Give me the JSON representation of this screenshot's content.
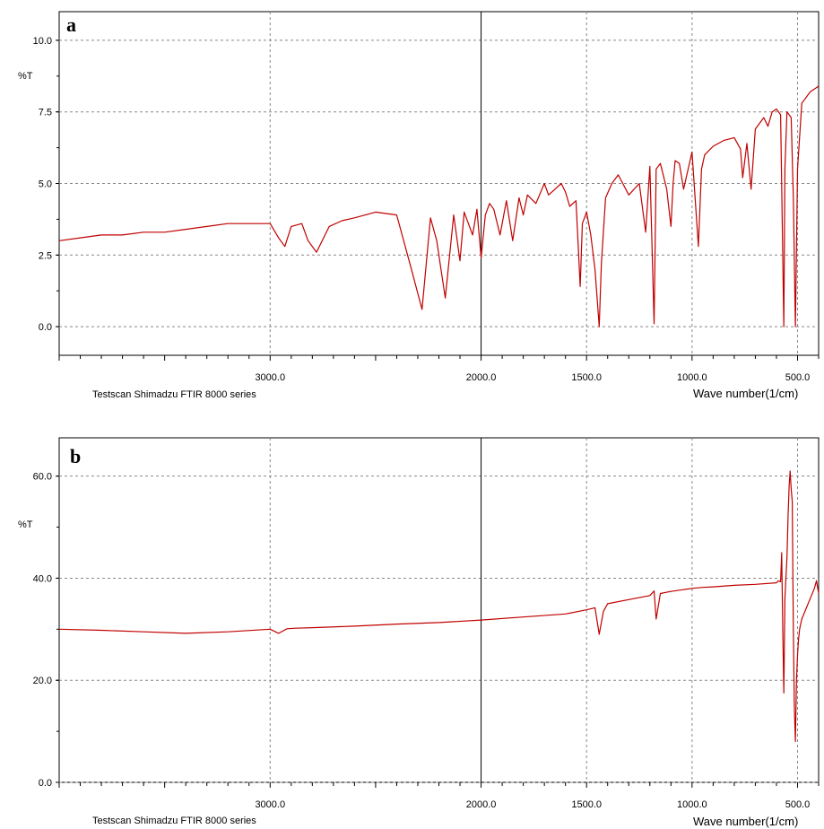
{
  "colors": {
    "trace": "#c00000",
    "frame": "#000000",
    "grid": "#888888"
  },
  "chart_data": [
    {
      "type": "line",
      "panel_label": "a",
      "ylabel": "%T",
      "xlabel": "Wave number(1/cm)",
      "footer": "Testscan Shimadzu FTIR 8000 series",
      "xlim": [
        4000,
        400
      ],
      "ylim": [
        -1,
        11
      ],
      "xticks": [
        3000.0,
        2000.0,
        1500.0,
        1000.0,
        500.0
      ],
      "xtick_labels": [
        "3000.0",
        "2000.0",
        "1500.0",
        "1000.0",
        "500.0"
      ],
      "yticks": [
        0.0,
        2.5,
        5.0,
        7.5,
        10.0
      ],
      "ytick_labels": [
        "0.0",
        "2.5",
        "5.0",
        "7.5",
        "10.0"
      ],
      "grid": true,
      "series": [
        {
          "x": [
            4000,
            3900,
            3800,
            3700,
            3600,
            3500,
            3400,
            3300,
            3200,
            3100,
            3000,
            2960,
            2930,
            2900,
            2850,
            2820,
            2780,
            2720,
            2660,
            2600,
            2500,
            2400,
            2330,
            2280,
            2240,
            2210,
            2170,
            2130,
            2100,
            2080,
            2040,
            2020,
            2000,
            1980,
            1960,
            1940,
            1910,
            1880,
            1850,
            1820,
            1800,
            1780,
            1740,
            1700,
            1680,
            1650,
            1620,
            1600,
            1580,
            1550,
            1530,
            1520,
            1500,
            1480,
            1460,
            1440,
            1430,
            1410,
            1380,
            1350,
            1300,
            1250,
            1220,
            1200,
            1180,
            1170,
            1150,
            1120,
            1100,
            1090,
            1080,
            1060,
            1040,
            1000,
            970,
            955,
            940,
            900,
            850,
            800,
            770,
            760,
            740,
            720,
            700,
            660,
            640,
            620,
            600,
            580,
            565,
            560,
            550,
            530,
            520,
            510,
            500,
            480,
            460,
            440,
            420,
            400
          ],
          "y": [
            3.0,
            3.1,
            3.2,
            3.2,
            3.3,
            3.3,
            3.4,
            3.5,
            3.6,
            3.6,
            3.6,
            3.1,
            2.8,
            3.5,
            3.6,
            3.0,
            2.6,
            3.5,
            3.7,
            3.8,
            4.0,
            3.9,
            2.0,
            0.6,
            3.8,
            3.0,
            1.0,
            3.9,
            2.3,
            4.0,
            3.2,
            4.1,
            2.4,
            3.9,
            4.3,
            4.1,
            3.2,
            4.4,
            3.0,
            4.5,
            3.9,
            4.6,
            4.3,
            5.0,
            4.6,
            4.8,
            5.0,
            4.7,
            4.2,
            4.4,
            1.4,
            3.6,
            4.0,
            3.2,
            2.0,
            0.0,
            2.2,
            4.5,
            5.0,
            5.3,
            4.6,
            5.0,
            3.3,
            5.6,
            0.1,
            5.5,
            5.7,
            4.8,
            3.5,
            5.0,
            5.8,
            5.7,
            4.8,
            6.1,
            2.8,
            5.5,
            6.0,
            6.3,
            6.5,
            6.6,
            6.2,
            5.2,
            6.4,
            4.8,
            6.9,
            7.3,
            7.0,
            7.5,
            7.6,
            7.4,
            0.0,
            5.5,
            7.5,
            7.3,
            4.5,
            0.0,
            5.5,
            7.8,
            8.0,
            8.2,
            8.3,
            8.4
          ]
        }
      ]
    },
    {
      "type": "line",
      "panel_label": "b",
      "ylabel": "%T",
      "xlabel": "Wave number(1/cm)",
      "footer": "Testscan Shimadzu FTIR 8000 series",
      "xlim": [
        4000,
        400
      ],
      "ylim": [
        0,
        67.5
      ],
      "xticks": [
        3000.0,
        2000.0,
        1500.0,
        1000.0,
        500.0
      ],
      "xtick_labels": [
        "3000.0",
        "2000.0",
        "1500.0",
        "1000.0",
        "500.0"
      ],
      "yticks": [
        0.0,
        20.0,
        40.0,
        60.0
      ],
      "ytick_labels": [
        "0.0",
        "20.0",
        "40.0",
        "60.0"
      ],
      "grid": true,
      "series": [
        {
          "x": [
            4000,
            3800,
            3600,
            3400,
            3200,
            3000,
            2960,
            2920,
            2880,
            2800,
            2600,
            2400,
            2200,
            2000,
            1800,
            1600,
            1500,
            1460,
            1440,
            1420,
            1400,
            1300,
            1200,
            1180,
            1170,
            1150,
            1100,
            1000,
            950,
            900,
            800,
            700,
            600,
            590,
            580,
            575,
            570,
            565,
            560,
            555,
            550,
            545,
            540,
            535,
            530,
            525,
            520,
            515,
            510,
            505,
            500,
            495,
            490,
            480,
            460,
            440,
            420,
            410,
            400
          ],
          "y": [
            30.0,
            29.8,
            29.5,
            29.2,
            29.5,
            30.0,
            29.2,
            30.1,
            30.2,
            30.3,
            30.6,
            31.0,
            31.3,
            31.8,
            32.4,
            33.0,
            33.8,
            34.2,
            29.0,
            33.5,
            35.0,
            35.8,
            36.6,
            37.5,
            32.0,
            37.0,
            37.4,
            38.0,
            38.2,
            38.3,
            38.6,
            38.8,
            39.1,
            39.5,
            39.3,
            45.0,
            30.0,
            17.5,
            36.0,
            40.0,
            44.0,
            52.0,
            58.0,
            61.0,
            57.5,
            55.0,
            30.0,
            15.0,
            8.0,
            20.0,
            25.0,
            28.0,
            30.0,
            32.0,
            34.0,
            36.0,
            38.0,
            39.5,
            37.0
          ]
        }
      ]
    }
  ]
}
